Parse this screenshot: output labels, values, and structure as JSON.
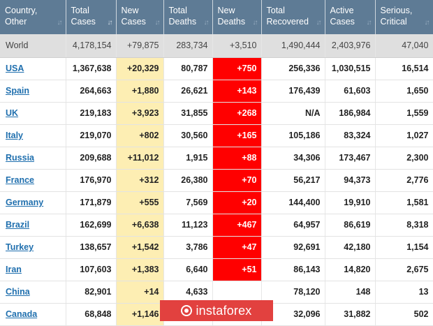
{
  "columns": [
    {
      "label": "Country, Other",
      "line1": "Country,",
      "line2": "Other"
    },
    {
      "label": "Total Cases",
      "line1": "Total",
      "line2": "Cases"
    },
    {
      "label": "New Cases",
      "line1": "New",
      "line2": "Cases"
    },
    {
      "label": "Total Deaths",
      "line1": "Total",
      "line2": "Deaths"
    },
    {
      "label": "New Deaths",
      "line1": "New",
      "line2": "Deaths"
    },
    {
      "label": "Total Recovered",
      "line1": "Total",
      "line2": "Recovered"
    },
    {
      "label": "Active Cases",
      "line1": "Active",
      "line2": "Cases"
    },
    {
      "label": "Serious, Critical",
      "line1": "Serious,",
      "line2": "Critical"
    }
  ],
  "sorted_column": "Total Cases",
  "world": {
    "country": "World",
    "total_cases": "4,178,154",
    "new_cases": "+79,875",
    "total_deaths": "283,734",
    "new_deaths": "+3,510",
    "total_recovered": "1,490,444",
    "active_cases": "2,403,976",
    "serious_critical": "47,040"
  },
  "rows": [
    {
      "country": "USA",
      "total_cases": "1,367,638",
      "new_cases": "+20,329",
      "total_deaths": "80,787",
      "new_deaths": "+750",
      "total_recovered": "256,336",
      "active_cases": "1,030,515",
      "serious_critical": "16,514"
    },
    {
      "country": "Spain",
      "total_cases": "264,663",
      "new_cases": "+1,880",
      "total_deaths": "26,621",
      "new_deaths": "+143",
      "total_recovered": "176,439",
      "active_cases": "61,603",
      "serious_critical": "1,650"
    },
    {
      "country": "UK",
      "total_cases": "219,183",
      "new_cases": "+3,923",
      "total_deaths": "31,855",
      "new_deaths": "+268",
      "total_recovered": "N/A",
      "active_cases": "186,984",
      "serious_critical": "1,559"
    },
    {
      "country": "Italy",
      "total_cases": "219,070",
      "new_cases": "+802",
      "total_deaths": "30,560",
      "new_deaths": "+165",
      "total_recovered": "105,186",
      "active_cases": "83,324",
      "serious_critical": "1,027"
    },
    {
      "country": "Russia",
      "total_cases": "209,688",
      "new_cases": "+11,012",
      "total_deaths": "1,915",
      "new_deaths": "+88",
      "total_recovered": "34,306",
      "active_cases": "173,467",
      "serious_critical": "2,300"
    },
    {
      "country": "France",
      "total_cases": "176,970",
      "new_cases": "+312",
      "total_deaths": "26,380",
      "new_deaths": "+70",
      "total_recovered": "56,217",
      "active_cases": "94,373",
      "serious_critical": "2,776"
    },
    {
      "country": "Germany",
      "total_cases": "171,879",
      "new_cases": "+555",
      "total_deaths": "7,569",
      "new_deaths": "+20",
      "total_recovered": "144,400",
      "active_cases": "19,910",
      "serious_critical": "1,581"
    },
    {
      "country": "Brazil",
      "total_cases": "162,699",
      "new_cases": "+6,638",
      "total_deaths": "11,123",
      "new_deaths": "+467",
      "total_recovered": "64,957",
      "active_cases": "86,619",
      "serious_critical": "8,318"
    },
    {
      "country": "Turkey",
      "total_cases": "138,657",
      "new_cases": "+1,542",
      "total_deaths": "3,786",
      "new_deaths": "+47",
      "total_recovered": "92,691",
      "active_cases": "42,180",
      "serious_critical": "1,154"
    },
    {
      "country": "Iran",
      "total_cases": "107,603",
      "new_cases": "+1,383",
      "total_deaths": "6,640",
      "new_deaths": "+51",
      "total_recovered": "86,143",
      "active_cases": "14,820",
      "serious_critical": "2,675"
    },
    {
      "country": "China",
      "total_cases": "82,901",
      "new_cases": "+14",
      "total_deaths": "4,633",
      "new_deaths": "",
      "total_recovered": "78,120",
      "active_cases": "148",
      "serious_critical": "13"
    },
    {
      "country": "Canada",
      "total_cases": "68,848",
      "new_cases": "+1,146",
      "total_deaths": "",
      "new_deaths": "",
      "total_recovered": "32,096",
      "active_cases": "31,882",
      "serious_critical": "502"
    }
  ],
  "colors": {
    "header_bg": "#5e7b95",
    "new_cases_bg": "#fdeeb3",
    "new_deaths_bg": "#ff0000",
    "link": "#1f6fae",
    "world_row_bg": "#dfdfdf",
    "watermark_bg": "#e2413f"
  },
  "watermark": {
    "text": "instaforex",
    "icon": "instaforex-logo-icon"
  }
}
